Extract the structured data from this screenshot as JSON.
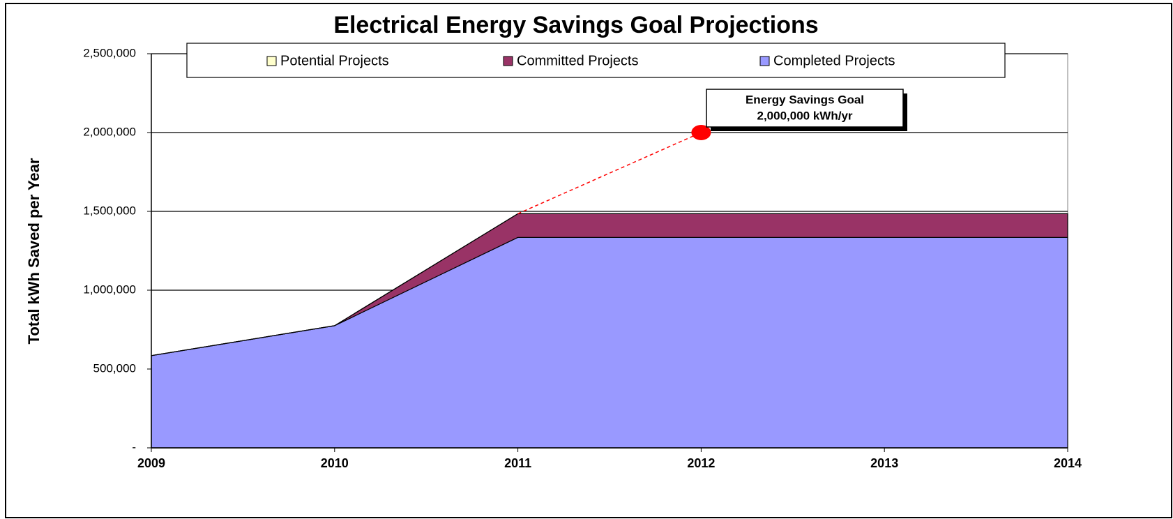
{
  "chart_data": {
    "type": "stacked_area",
    "title": "Electrical Energy Savings Goal Projections",
    "y_axis_label": "Total kWh Saved per Year",
    "categories": [
      "2009",
      "2010",
      "2011",
      "2012",
      "2013",
      "2014"
    ],
    "series": [
      {
        "name": "Potential Projects",
        "color": "#ffffcc",
        "values": [
          0,
          0,
          0,
          0,
          0,
          0
        ]
      },
      {
        "name": "Committed Projects",
        "color": "#993366",
        "values": [
          0,
          0,
          150000,
          150000,
          150000,
          150000
        ]
      },
      {
        "name": "Completed Projects",
        "color": "#9999ff",
        "values": [
          585000,
          775000,
          1335000,
          1335000,
          1335000,
          1335000
        ]
      }
    ],
    "ylim": [
      0,
      2500000
    ],
    "yticks": [
      {
        "value": 0,
        "label": "-"
      },
      {
        "value": 500000,
        "label": "500,000"
      },
      {
        "value": 1000000,
        "label": "1,000,000"
      },
      {
        "value": 1500000,
        "label": "1,500,000"
      },
      {
        "value": 2000000,
        "label": "2,000,000"
      },
      {
        "value": 2500000,
        "label": "2,500,000"
      }
    ],
    "grid": true,
    "goal": {
      "category": "2012",
      "value": 2000000,
      "label": [
        "Energy Savings Goal",
        "2,000,000 kWh/yr"
      ],
      "color": "#ff0000"
    }
  }
}
